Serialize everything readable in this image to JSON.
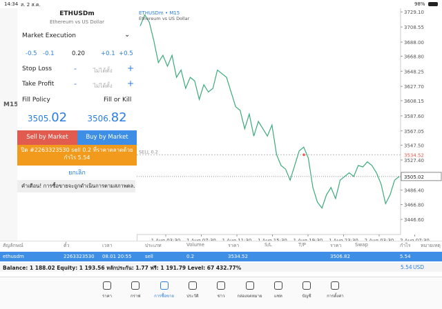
{
  "status": {
    "time": "14:34",
    "date": "ส. 2 ส.ค.",
    "battery": "98%"
  },
  "toolbar": {
    "timeframe": "M15"
  },
  "order": {
    "symbol": "ETHUSDm",
    "description": "Ethereum vs US Dollar",
    "execution": "Market Execution",
    "steps": [
      "-0.5",
      "-0.1",
      "0.20",
      "+0.1",
      "+0.5"
    ],
    "stop_loss": "Stop Loss",
    "take_profit": "Take Profit",
    "minus": "-",
    "plus": "+",
    "not_set": "ไม่ได้ตั้ง",
    "fill_policy": "Fill Policy",
    "fill_value": "Fill or Kill",
    "bid": {
      "main": "3505.",
      "big": "02"
    },
    "ask": {
      "main": "3506.",
      "big": "82"
    },
    "sell_button": "Sell by Market",
    "buy_button": "Buy by Market",
    "notice": "ปิด #2263323530 sell 0.2 ที่ราคาตลาดด้วยกำไร 5.54",
    "cancel": "ยกเลิก",
    "warning": "คำเตือน! การซื้อขายจะถูกดำเนินการตามสภาพตล..."
  },
  "chart": {
    "symbol": "ETHUSDm • M15",
    "description": "Ethereum vs US Dollar",
    "sell_line_label": "SELL 0.2",
    "sell_price": 3534.52,
    "current_price": 3505.02,
    "color": "#3aaa7a",
    "ylim": [
      3426,
      3734
    ],
    "yticks": [
      {
        "value": 3729.1,
        "label": "3729.10"
      },
      3708.55,
      {
        "value": 3688,
        "label": "3688.00"
      },
      {
        "value": 3668.8,
        "label": "3668.80"
      },
      3648.25,
      {
        "value": 3627.7,
        "label": "3627.70"
      },
      3608.15,
      {
        "value": 3587.6,
        "label": "3587.60"
      },
      3567.05,
      {
        "value": 3547.5,
        "label": "3547.50"
      },
      {
        "value": 3527.4,
        "label": "3527.40"
      },
      {
        "value": 3486.4,
        "label": "3486.40"
      },
      {
        "value": 3466.8,
        "label": "3466.80"
      },
      {
        "value": 3446.6,
        "label": "3446.60"
      }
    ],
    "xlabels": [
      "1 Aug 03:30",
      "1 Aug 07:30",
      "1 Aug 11:30",
      "1 Aug 15:30",
      "1 Aug 19:30",
      "1 Aug 23:30",
      "2 Aug 03:30",
      "2 Aug 07:30"
    ],
    "prices": [
      3710,
      3725,
      3715,
      3690,
      3660,
      3670,
      3655,
      3670,
      3640,
      3650,
      3625,
      3640,
      3635,
      3610,
      3630,
      3620,
      3625,
      3650,
      3645,
      3640,
      3620,
      3600,
      3595,
      3570,
      3590,
      3560,
      3580,
      3570,
      3560,
      3575,
      3535,
      3520,
      3515,
      3500,
      3520,
      3540,
      3545,
      3530,
      3490,
      3470,
      3462,
      3480,
      3490,
      3475,
      3500,
      3505,
      3510,
      3505,
      3520,
      3518,
      3525,
      3520,
      3510,
      3495,
      3468,
      3480,
      3500,
      3505
    ]
  },
  "table": {
    "headers": [
      "สัญลักษณ์",
      "ตั๋ว",
      "เวลา",
      "ประเภท",
      "Volume",
      "ราคา",
      "S/L",
      "T/P",
      "ราคา",
      "Swap",
      "กำไร",
      "หมายเหตุ"
    ],
    "row": [
      "ethusdm",
      "2263323530",
      "08.01 20:55",
      "sell",
      "0.2",
      "3534.52",
      null,
      null,
      "3506.82",
      null,
      "5.54",
      null
    ],
    "balance": "Balance: 1 188.02 Equity: 1 193.56 หลักประกัน: 1.77 ฟรี: 1 191.79 Level: 67 432.77%",
    "total": "5.54",
    "currency": "USD"
  },
  "tabs": [
    "ราคา",
    "กราฟ",
    "การซื้อขาย",
    "ประวัติ",
    "ข่าว",
    "กล่องจดหมาย",
    "แชท",
    "บัญชี",
    "การตั้งค่า"
  ]
}
